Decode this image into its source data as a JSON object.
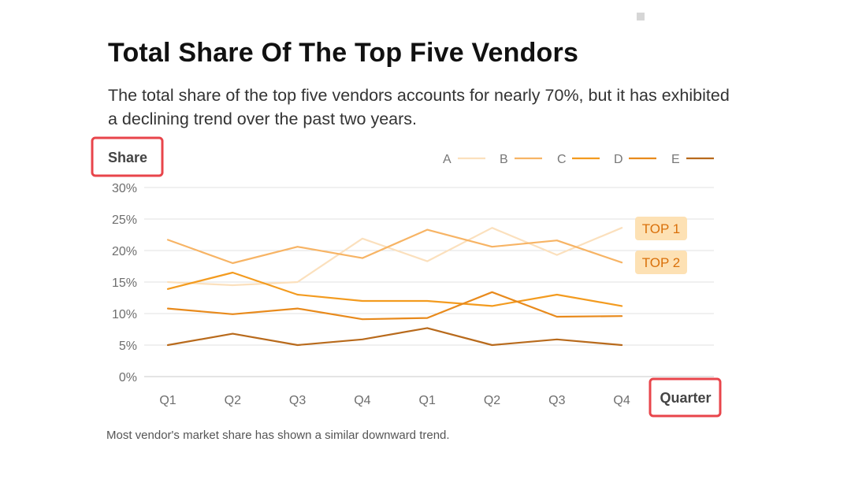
{
  "title": "Total Share Of The Top Five Vendors",
  "subtitle": "The total share of the top five vendors accounts for nearly 70%, but it has exhibited a declining trend over the past two years.",
  "footnote": "Most vendor's market share has shown a similar downward trend.",
  "highlight_color": "#e8454b",
  "chart_data": {
    "type": "line",
    "title": "Total Share Of The Top Five Vendors",
    "xlabel": "Quarter",
    "ylabel": "Share",
    "categories": [
      "Q1",
      "Q2",
      "Q3",
      "Q4",
      "Q1",
      "Q2",
      "Q3",
      "Q4"
    ],
    "ylim": [
      0,
      30
    ],
    "yticks": [
      0,
      5,
      10,
      15,
      20,
      25,
      30
    ],
    "ytick_labels": [
      "0%",
      "5%",
      "10%",
      "15%",
      "20%",
      "25%",
      "30%"
    ],
    "grid": true,
    "legend_position": "top-right",
    "series": [
      {
        "name": "A",
        "color": "#fbe0bd",
        "values": [
          15.0,
          14.5,
          15.0,
          21.9,
          18.3,
          23.6,
          19.3,
          23.6
        ]
      },
      {
        "name": "B",
        "color": "#f7b465",
        "values": [
          21.7,
          18.0,
          20.6,
          18.8,
          23.3,
          20.6,
          21.6,
          18.1
        ]
      },
      {
        "name": "C",
        "color": "#f39b1f",
        "values": [
          13.9,
          16.5,
          13.0,
          12.0,
          12.0,
          11.2,
          13.0,
          11.2
        ]
      },
      {
        "name": "D",
        "color": "#e88a1c",
        "values": [
          10.8,
          9.9,
          10.8,
          9.1,
          9.3,
          13.4,
          9.5,
          9.6
        ]
      },
      {
        "name": "E",
        "color": "#b86a1c",
        "values": [
          5.0,
          6.8,
          5.0,
          5.9,
          7.7,
          5.0,
          5.9,
          5.0
        ]
      }
    ],
    "annotations": [
      {
        "text": "TOP 1",
        "series": "A"
      },
      {
        "text": "TOP 2",
        "series": "B"
      }
    ],
    "badge_fill": "#fde1b4",
    "badge_text_color": "#d9700a"
  }
}
